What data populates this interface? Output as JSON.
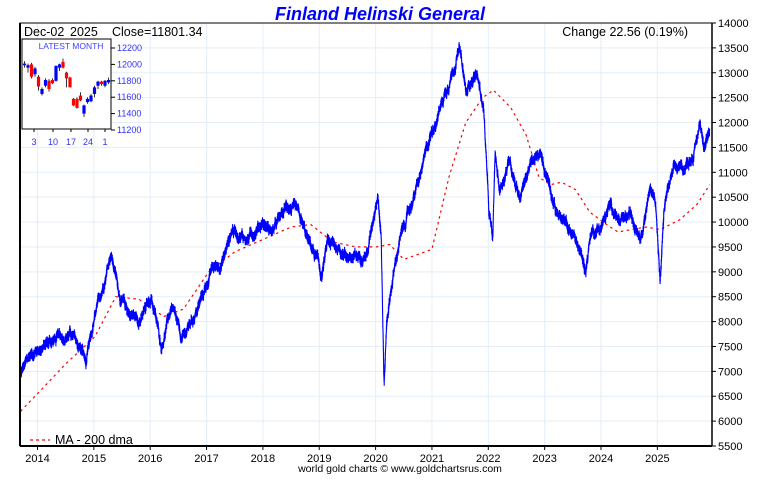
{
  "chart_data": {
    "type": "line",
    "title": "Finland Helinski General",
    "header": {
      "date": "Dec-02",
      "year": "2025",
      "close": "Close=11801.34",
      "change": "Change 22.56 (0.19%)"
    },
    "ylim": [
      5500,
      14000
    ],
    "y_ticks": [
      "5500",
      "6000",
      "6500",
      "7000",
      "7500",
      "8000",
      "8500",
      "9000",
      "9500",
      "10000",
      "10500",
      "11000",
      "11500",
      "12000",
      "12500",
      "13000",
      "13500",
      "14000"
    ],
    "x_ticks": [
      "2014",
      "2015",
      "2016",
      "2017",
      "2018",
      "2019",
      "2020",
      "2021",
      "2022",
      "2023",
      "2024",
      "2025"
    ],
    "xlim": [
      2013.7,
      2025.93
    ],
    "grid": true,
    "legend": {
      "position": "bottom-left",
      "label": "MA - 200 dma"
    },
    "footer": "world gold charts © www.goldchartsrus.com",
    "colors": {
      "price": "#0000ff",
      "ma": "#ff0000",
      "title": "#0000ff",
      "inset_up": "#0000ff",
      "inset_down": "#ff0000"
    },
    "series": [
      {
        "name": "Close",
        "x": [
          2013.7,
          2013.88,
          2014.22,
          2014.58,
          2014.8,
          2014.86,
          2015.02,
          2015.2,
          2015.3,
          2015.48,
          2015.65,
          2015.84,
          2016.02,
          2016.2,
          2016.38,
          2016.56,
          2016.74,
          2016.84,
          2017.1,
          2017.28,
          2017.46,
          2017.72,
          2017.99,
          2018.17,
          2018.44,
          2018.62,
          2018.8,
          2018.98,
          2019.04,
          2019.15,
          2019.42,
          2019.6,
          2019.86,
          2020.04,
          2020.1,
          2020.15,
          2020.2,
          2020.28,
          2020.42,
          2020.6,
          2020.78,
          2020.95,
          2021.13,
          2021.31,
          2021.49,
          2021.61,
          2021.7,
          2021.8,
          2021.92,
          2022.01,
          2022.08,
          2022.12,
          2022.2,
          2022.38,
          2022.56,
          2022.74,
          2022.92,
          2023.1,
          2023.19,
          2023.37,
          2023.55,
          2023.73,
          2023.82,
          2024.0,
          2024.18,
          2024.35,
          2024.53,
          2024.71,
          2024.8,
          2024.88,
          2024.97,
          2025.05,
          2025.12,
          2025.18,
          2025.31,
          2025.49,
          2025.67,
          2025.76,
          2025.82,
          2025.88,
          2025.93
        ],
        "y": [
          6940,
          7340,
          7600,
          7750,
          7400,
          7150,
          8050,
          8900,
          9410,
          8440,
          8140,
          8050,
          8500,
          7500,
          8300,
          7600,
          8040,
          8250,
          9050,
          9200,
          9860,
          9650,
          10000,
          9800,
          10350,
          10150,
          9630,
          9200,
          8900,
          9600,
          9400,
          9250,
          9400,
          10650,
          9700,
          6700,
          8050,
          8700,
          9600,
          10250,
          10850,
          11650,
          12260,
          12860,
          13470,
          12550,
          12900,
          12960,
          12260,
          10200,
          9600,
          11360,
          10650,
          11250,
          10500,
          11150,
          11320,
          10760,
          10250,
          9950,
          9650,
          9050,
          9800,
          9900,
          10350,
          9950,
          10150,
          9750,
          10300,
          10650,
          10450,
          8750,
          10250,
          10650,
          11060,
          11100,
          11450,
          12000,
          11600,
          11780,
          11801
        ]
      },
      {
        "name": "MA - 200 dma",
        "x": [
          2013.7,
          2014.0,
          2014.5,
          2015.02,
          2015.39,
          2015.8,
          2016.24,
          2016.59,
          2017.04,
          2017.5,
          2018.1,
          2018.5,
          2018.85,
          2019.24,
          2019.65,
          2020.02,
          2020.25,
          2020.5,
          2020.75,
          2021.0,
          2021.3,
          2021.6,
          2021.9,
          2022.09,
          2022.4,
          2022.67,
          2022.9,
          2023.1,
          2023.3,
          2023.55,
          2023.8,
          2024.1,
          2024.3,
          2024.55,
          2024.8,
          2025.05,
          2025.4,
          2025.7,
          2025.93
        ],
        "y": [
          6200,
          6550,
          7150,
          7700,
          8500,
          8450,
          8100,
          8250,
          9000,
          9400,
          9700,
          9900,
          9950,
          9600,
          9500,
          9500,
          9550,
          9250,
          9350,
          9450,
          10900,
          12000,
          12500,
          12650,
          12300,
          11750,
          10900,
          10750,
          10800,
          10650,
          10200,
          9950,
          9800,
          9850,
          9900,
          9850,
          10050,
          10350,
          10750
        ]
      }
    ],
    "inset": {
      "title": "LATEST MONTH",
      "y_ticks": [
        "11200",
        "11400",
        "11600",
        "11800",
        "12000",
        "12200"
      ],
      "ylim": [
        11200,
        12200
      ],
      "x_ticks": [
        "3",
        "10",
        "17",
        "24",
        "1"
      ],
      "candles": [
        {
          "o": 11990,
          "c": 12010,
          "h": 12040,
          "l": 11960
        },
        {
          "o": 11960,
          "c": 11990,
          "h": 12010,
          "l": 11900
        },
        {
          "o": 12000,
          "c": 11850,
          "h": 12020,
          "l": 11830
        },
        {
          "o": 11880,
          "c": 11950,
          "h": 11970,
          "l": 11850
        },
        {
          "o": 11850,
          "c": 11730,
          "h": 11870,
          "l": 11680
        },
        {
          "o": 11640,
          "c": 11700,
          "h": 11720,
          "l": 11620
        },
        {
          "o": 11740,
          "c": 11810,
          "h": 11830,
          "l": 11720
        },
        {
          "o": 11800,
          "c": 11700,
          "h": 11820,
          "l": 11670
        },
        {
          "o": 11810,
          "c": 11770,
          "h": 11830,
          "l": 11760
        },
        {
          "o": 11800,
          "c": 11980,
          "h": 11990,
          "l": 11790
        },
        {
          "o": 11960,
          "c": 12000,
          "h": 12010,
          "l": 11920
        },
        {
          "o": 12030,
          "c": 11960,
          "h": 12070,
          "l": 11950
        },
        {
          "o": 11900,
          "c": 11830,
          "h": 11910,
          "l": 11720
        },
        {
          "o": 11840,
          "c": 11720,
          "h": 11850,
          "l": 11720
        },
        {
          "o": 11580,
          "c": 11500,
          "h": 11590,
          "l": 11490
        },
        {
          "o": 11580,
          "c": 11470,
          "h": 11600,
          "l": 11460
        },
        {
          "o": 11620,
          "c": 11560,
          "h": 11660,
          "l": 11550
        },
        {
          "o": 11400,
          "c": 11500,
          "h": 11510,
          "l": 11360
        },
        {
          "o": 11540,
          "c": 11580,
          "h": 11600,
          "l": 11520
        },
        {
          "o": 11550,
          "c": 11620,
          "h": 11640,
          "l": 11540
        },
        {
          "o": 11640,
          "c": 11720,
          "h": 11740,
          "l": 11600
        },
        {
          "o": 11740,
          "c": 11790,
          "h": 11800,
          "l": 11700
        },
        {
          "o": 11790,
          "c": 11760,
          "h": 11800,
          "l": 11740
        },
        {
          "o": 11740,
          "c": 11800,
          "h": 11810,
          "l": 11720
        },
        {
          "o": 11780,
          "c": 11810,
          "h": 11840,
          "l": 11760
        }
      ]
    }
  }
}
